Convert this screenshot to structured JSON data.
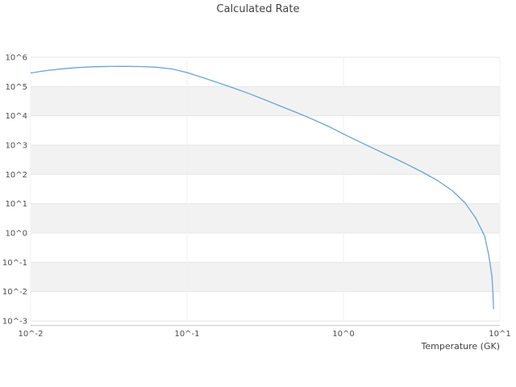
{
  "chart_data": {
    "type": "line",
    "title": "Calculated Rate",
    "xlabel": "Temperature (GK)",
    "ylabel": "",
    "x_scale": "log",
    "y_scale": "log",
    "xlim": [
      0.01,
      10
    ],
    "ylim": [
      0.001,
      1000000
    ],
    "grid": true,
    "legend": "none",
    "x_ticks": [
      {
        "value": 0.01,
        "label": "10^-2"
      },
      {
        "value": 0.1,
        "label": "10^-1"
      },
      {
        "value": 1,
        "label": "10^0"
      },
      {
        "value": 10,
        "label": "10^1"
      }
    ],
    "y_ticks": [
      {
        "value": 0.001,
        "label": "10^-3"
      },
      {
        "value": 0.01,
        "label": "10^-2"
      },
      {
        "value": 0.1,
        "label": "10^-1"
      },
      {
        "value": 1,
        "label": "10^0"
      },
      {
        "value": 10,
        "label": "10^1"
      },
      {
        "value": 100,
        "label": "10^2"
      },
      {
        "value": 1000,
        "label": "10^3"
      },
      {
        "value": 10000,
        "label": "10^4"
      },
      {
        "value": 100000,
        "label": "10^5"
      },
      {
        "value": 1000000,
        "label": "10^6"
      }
    ],
    "colors": {
      "line": "#6ba3d6",
      "band": "#f2f2f2",
      "grid": "#e6e6e6",
      "axis": "#cccccc",
      "text": "#4c4c4c"
    },
    "series": [
      {
        "name": "calculated-rate",
        "x": [
          0.01,
          0.0125,
          0.016,
          0.02,
          0.025,
          0.032,
          0.04,
          0.05,
          0.063,
          0.08,
          0.1,
          0.125,
          0.16,
          0.2,
          0.25,
          0.32,
          0.4,
          0.5,
          0.63,
          0.8,
          1.0,
          1.25,
          1.6,
          2.0,
          2.5,
          3.2,
          4.0,
          5.0,
          6.0,
          7.0,
          8.0,
          8.5,
          8.9,
          9.03,
          9.12
        ],
        "y": [
          290000,
          350000,
          405000,
          445000,
          472000,
          487000,
          490000,
          483000,
          458000,
          398000,
          300000,
          205000,
          132000,
          88000,
          57000,
          34000,
          21000,
          13000,
          7800,
          4400,
          2400,
          1350,
          720,
          410,
          235,
          120,
          62,
          27,
          10.5,
          3.3,
          0.78,
          0.17,
          0.032,
          0.009,
          0.0025
        ]
      }
    ]
  }
}
